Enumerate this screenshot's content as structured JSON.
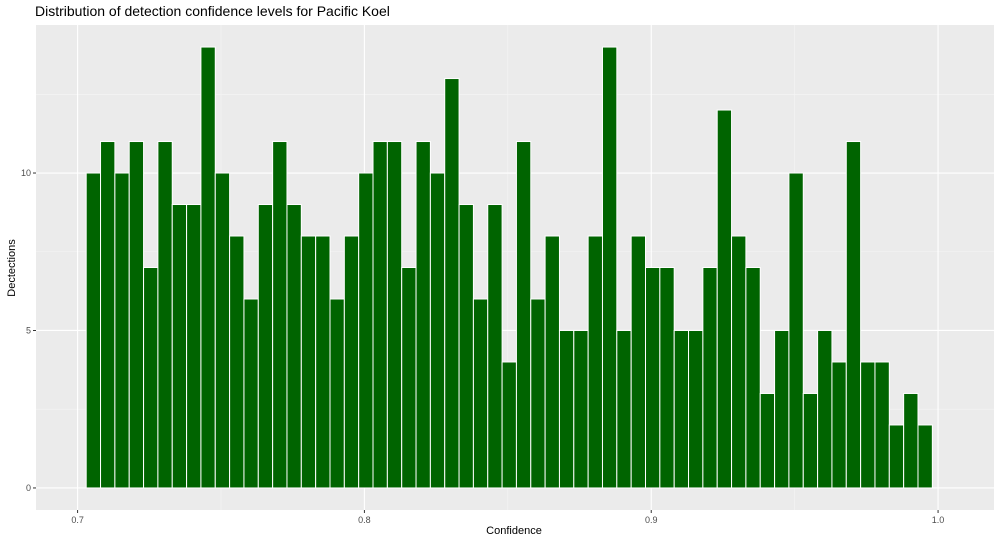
{
  "chart_data": {
    "type": "bar",
    "title": "Distribution of detection confidence levels for Pacific Koel",
    "xlabel": "Confidence",
    "ylabel": "Dectections",
    "xlim": [
      0.6855,
      1.0195
    ],
    "ylim": [
      -0.7,
      14.7
    ],
    "grid": true,
    "legend": "none",
    "bin_width": 0.005,
    "x_ticks": [
      {
        "value": 0.7,
        "label": "0.7"
      },
      {
        "value": 0.8,
        "label": "0.8"
      },
      {
        "value": 0.9,
        "label": "0.9"
      },
      {
        "value": 1.0,
        "label": "1.0"
      }
    ],
    "y_ticks": [
      {
        "value": 0,
        "label": "0"
      },
      {
        "value": 5,
        "label": "5"
      },
      {
        "value": 10,
        "label": "10"
      }
    ],
    "x": [
      0.7055,
      0.7105,
      0.7155,
      0.7205,
      0.7255,
      0.7305,
      0.7355,
      0.7405,
      0.7455,
      0.7505,
      0.7555,
      0.7605,
      0.7655,
      0.7705,
      0.7755,
      0.7805,
      0.7855,
      0.7905,
      0.7955,
      0.8005,
      0.8055,
      0.8105,
      0.8155,
      0.8205,
      0.8255,
      0.8305,
      0.8355,
      0.8405,
      0.8455,
      0.8505,
      0.8555,
      0.8605,
      0.8655,
      0.8705,
      0.8755,
      0.8805,
      0.8855,
      0.8905,
      0.8955,
      0.9005,
      0.9055,
      0.9105,
      0.9155,
      0.9205,
      0.9255,
      0.9305,
      0.9355,
      0.9405,
      0.9455,
      0.9505,
      0.9555,
      0.9605,
      0.9655,
      0.9705,
      0.9755,
      0.9805,
      0.9855,
      0.9905,
      0.9955
    ],
    "values": [
      10,
      11,
      10,
      11,
      7,
      11,
      9,
      9,
      14,
      10,
      8,
      6,
      9,
      11,
      9,
      8,
      8,
      6,
      8,
      10,
      11,
      11,
      7,
      11,
      10,
      13,
      9,
      6,
      9,
      4,
      11,
      6,
      8,
      5,
      5,
      8,
      14,
      5,
      8,
      7,
      7,
      5,
      5,
      7,
      12,
      8,
      7,
      3,
      5,
      10,
      3,
      5,
      4,
      11,
      4,
      4,
      2,
      3,
      2
    ],
    "colors": {
      "bar_fill": "#006400",
      "bar_outline": "#ffffff",
      "panel_background": "#ebebeb",
      "grid_major": "#ffffff",
      "grid_minor": "#f5f5f5"
    }
  }
}
